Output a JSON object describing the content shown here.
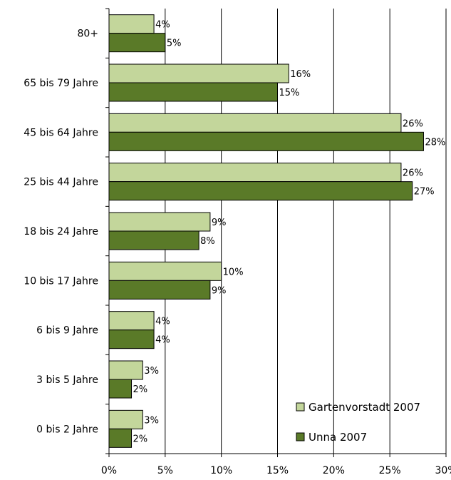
{
  "chart_data": {
    "type": "bar",
    "orientation": "horizontal",
    "categories": [
      "80+",
      "65 bis 79 Jahre",
      "45 bis 64 Jahre",
      "25 bis 44 Jahre",
      "18 bis 24 Jahre",
      "10 bis 17 Jahre",
      "6 bis 9 Jahre",
      "3 bis 5 Jahre",
      "0 bis 2 Jahre"
    ],
    "series": [
      {
        "name": "Gartenvorstadt 2007",
        "color": "#c3d69b",
        "values": [
          4,
          16,
          26,
          26,
          9,
          10,
          4,
          3,
          3
        ],
        "labels": [
          "4%",
          "16%",
          "26%",
          "26%",
          "9%",
          "10%",
          "4%",
          "3%",
          "3%"
        ]
      },
      {
        "name": "Unna 2007",
        "color": "#5a7a28",
        "values": [
          5,
          15,
          28,
          27,
          8,
          9,
          4,
          2,
          2
        ],
        "labels": [
          "5%",
          "15%",
          "28%",
          "27%",
          "8%",
          "9%",
          "4%",
          "2%",
          "2%"
        ]
      }
    ],
    "xlim": [
      0,
      30
    ],
    "xticks": [
      0,
      5,
      10,
      15,
      20,
      25,
      30
    ],
    "xtick_labels": [
      "0%",
      "5%",
      "10%",
      "15%",
      "20%",
      "25%",
      "30%"
    ],
    "grid": "vertical",
    "legend_position": "bottom-right",
    "title": "",
    "xlabel": "",
    "ylabel": ""
  }
}
